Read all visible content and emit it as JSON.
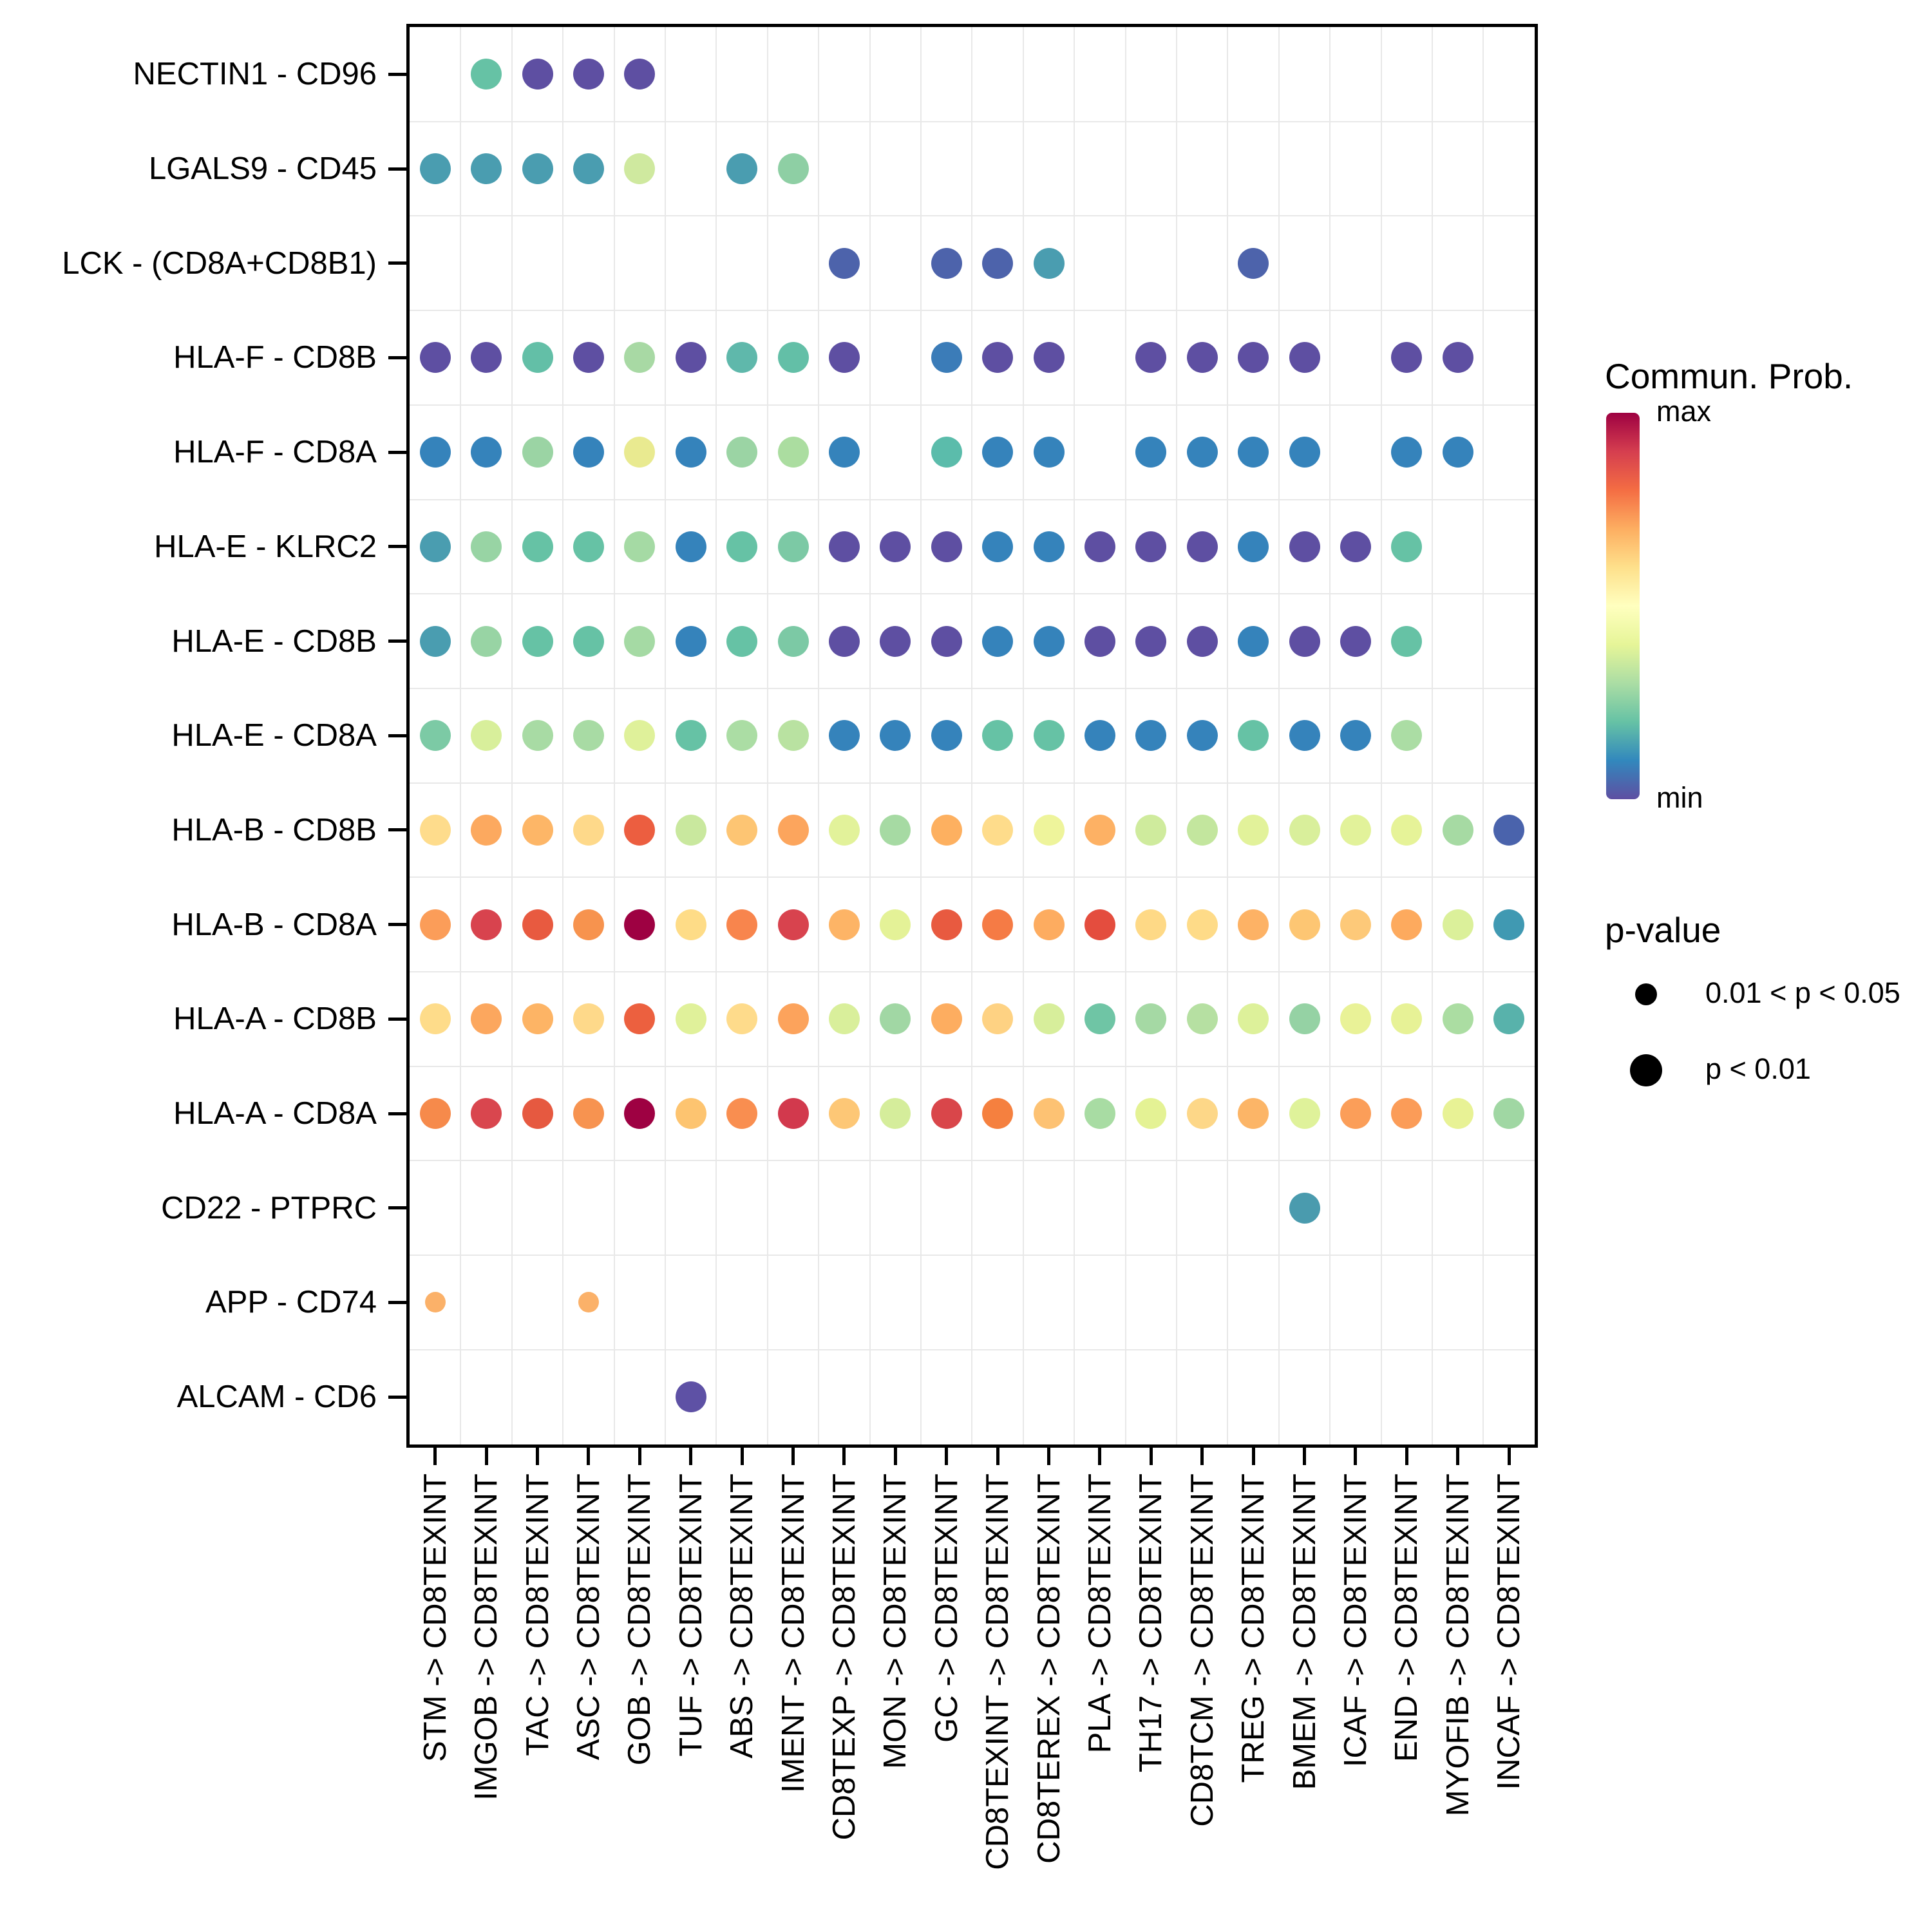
{
  "figure": {
    "background": "#ffffff",
    "panel_border_color": "#000000",
    "grid_color": "#e8e8e8"
  },
  "y_axis": {
    "labels": [
      "NECTIN1 - CD96",
      "LGALS9 - CD45",
      "LCK - (CD8A+CD8B1)",
      "HLA-F - CD8B",
      "HLA-F - CD8A",
      "HLA-E - KLRC2",
      "HLA-E - CD8B",
      "HLA-E - CD8A",
      "HLA-B - CD8B",
      "HLA-B - CD8A",
      "HLA-A - CD8B",
      "HLA-A - CD8A",
      "CD22 - PTPRC",
      "APP - CD74",
      "ALCAM - CD6"
    ]
  },
  "x_axis": {
    "labels": [
      "STM -> CD8TEXINT",
      "IMGOB -> CD8TEXINT",
      "TAC -> CD8TEXINT",
      "ASC -> CD8TEXINT",
      "GOB -> CD8TEXINT",
      "TUF -> CD8TEXINT",
      "ABS -> CD8TEXINT",
      "IMENT -> CD8TEXINT",
      "CD8TEXP -> CD8TEXINT",
      "MON -> CD8TEXINT",
      "GC -> CD8TEXINT",
      "CD8TEXINT -> CD8TEXINT",
      "CD8TEREX -> CD8TEXINT",
      "PLA -> CD8TEXINT",
      "TH17 -> CD8TEXINT",
      "CD8TCM -> CD8TEXINT",
      "TREG -> CD8TEXINT",
      "BMEM -> CD8TEXINT",
      "ICAF -> CD8TEXINT",
      "END -> CD8TEXINT",
      "MYOFIB -> CD8TEXINT",
      "INCAF -> CD8TEXINT"
    ]
  },
  "legend": {
    "color": {
      "title": "Commun. Prob.",
      "max_label": "max",
      "min_label": "min",
      "gradient_top_to_bottom": [
        "#9e0142",
        "#d53e4f",
        "#f46d43",
        "#fdae61",
        "#fee08b",
        "#ffffbf",
        "#e6f598",
        "#abdda4",
        "#66c2a5",
        "#3288bd",
        "#5e4fa2"
      ]
    },
    "pvalue": {
      "title": "p-value",
      "items": [
        {
          "label": "0.01 < p < 0.05",
          "size": "small"
        },
        {
          "label": "p < 0.01",
          "size": "large"
        }
      ]
    }
  },
  "chart_data": {
    "type": "scatter",
    "subtype": "ligand-receptor dot matrix (CellChat bubble plot)",
    "title": "",
    "xlabel": "",
    "ylabel": "",
    "grid": true,
    "legend_position": "right",
    "color_encoding": "communication probability: min = #5e4fa2 (purple) to max = #9e0142 (dark red), Spectral palette",
    "size_encoding": {
      "1": "p < 0.01 (large dot)",
      "0": "0.01 < p < 0.05 (small dot)"
    },
    "x_categories": [
      "STM",
      "IMGOB",
      "TAC",
      "ASC",
      "GOB",
      "TUF",
      "ABS",
      "IMENT",
      "CD8TEXP",
      "MON",
      "GC",
      "CD8TEXINT",
      "CD8TEREX",
      "PLA",
      "TH17",
      "CD8TCM",
      "TREG",
      "BMEM",
      "ICAF",
      "END",
      "MYOFIB",
      "INCAF"
    ],
    "y_categories": [
      "NECTIN1 - CD96",
      "LGALS9 - CD45",
      "LCK - (CD8A+CD8B1)",
      "HLA-F - CD8B",
      "HLA-F - CD8A",
      "HLA-E - KLRC2",
      "HLA-E - CD8B",
      "HLA-E - CD8A",
      "HLA-B - CD8B",
      "HLA-B - CD8A",
      "HLA-A - CD8B",
      "HLA-A - CD8A",
      "CD22 - PTPRC",
      "APP - CD74",
      "ALCAM - CD6"
    ],
    "dot_format": "[row_index, col_index, color_hex, size_flag(1=p<0.01,0=0.01<p<0.05)]",
    "dots": [
      [
        0,
        1,
        "#66c2a5",
        1
      ],
      [
        0,
        2,
        "#5e4fa2",
        1
      ],
      [
        0,
        3,
        "#5e4fa2",
        1
      ],
      [
        0,
        4,
        "#5e4fa2",
        1
      ],
      [
        1,
        0,
        "#4a9db0",
        1
      ],
      [
        1,
        1,
        "#4a9db0",
        1
      ],
      [
        1,
        2,
        "#4a9db0",
        1
      ],
      [
        1,
        3,
        "#4a9db0",
        1
      ],
      [
        1,
        4,
        "#cfe99f",
        1
      ],
      [
        1,
        6,
        "#4a9db0",
        1
      ],
      [
        1,
        7,
        "#8ecfa4",
        1
      ],
      [
        2,
        8,
        "#4d63ab",
        1
      ],
      [
        2,
        10,
        "#4d63ab",
        1
      ],
      [
        2,
        11,
        "#4d63ab",
        1
      ],
      [
        2,
        12,
        "#4a9db0",
        1
      ],
      [
        2,
        16,
        "#4d63ab",
        1
      ],
      [
        3,
        0,
        "#5e4fa2",
        1
      ],
      [
        3,
        1,
        "#5e4fa2",
        1
      ],
      [
        3,
        2,
        "#63bfa7",
        1
      ],
      [
        3,
        3,
        "#5e4fa2",
        1
      ],
      [
        3,
        4,
        "#a8d9a4",
        1
      ],
      [
        3,
        5,
        "#5e4fa2",
        1
      ],
      [
        3,
        6,
        "#5fb8ab",
        1
      ],
      [
        3,
        7,
        "#63bfa7",
        1
      ],
      [
        3,
        8,
        "#5e4fa2",
        1
      ],
      [
        3,
        10,
        "#3b7cb8",
        1
      ],
      [
        3,
        11,
        "#5e4fa2",
        1
      ],
      [
        3,
        12,
        "#5e4fa2",
        1
      ],
      [
        3,
        14,
        "#5e4fa2",
        1
      ],
      [
        3,
        15,
        "#5e4fa2",
        1
      ],
      [
        3,
        16,
        "#5e4fa2",
        1
      ],
      [
        3,
        17,
        "#5e4fa2",
        1
      ],
      [
        3,
        19,
        "#5e4fa2",
        1
      ],
      [
        3,
        20,
        "#5e4fa2",
        1
      ],
      [
        4,
        0,
        "#3583bb",
        1
      ],
      [
        4,
        1,
        "#3583bb",
        1
      ],
      [
        4,
        2,
        "#9bd4a4",
        1
      ],
      [
        4,
        3,
        "#3583bb",
        1
      ],
      [
        4,
        4,
        "#e9ea90",
        1
      ],
      [
        4,
        5,
        "#3583bb",
        1
      ],
      [
        4,
        6,
        "#9bd4a4",
        1
      ],
      [
        4,
        7,
        "#abdda0",
        1
      ],
      [
        4,
        8,
        "#3583bb",
        1
      ],
      [
        4,
        10,
        "#5bbcab",
        1
      ],
      [
        4,
        11,
        "#3583bb",
        1
      ],
      [
        4,
        12,
        "#3583bb",
        1
      ],
      [
        4,
        14,
        "#3583bb",
        1
      ],
      [
        4,
        15,
        "#3583bb",
        1
      ],
      [
        4,
        16,
        "#3583bb",
        1
      ],
      [
        4,
        17,
        "#3583bb",
        1
      ],
      [
        4,
        19,
        "#3583bb",
        1
      ],
      [
        4,
        20,
        "#3583bb",
        1
      ],
      [
        5,
        0,
        "#4a9db0",
        1
      ],
      [
        5,
        1,
        "#98d4a4",
        1
      ],
      [
        5,
        2,
        "#66c2a5",
        1
      ],
      [
        5,
        3,
        "#66c2a5",
        1
      ],
      [
        5,
        4,
        "#a5daa4",
        1
      ],
      [
        5,
        5,
        "#3583bb",
        1
      ],
      [
        5,
        6,
        "#66c2a5",
        1
      ],
      [
        5,
        7,
        "#7cc9a5",
        1
      ],
      [
        5,
        8,
        "#5e4fa2",
        1
      ],
      [
        5,
        9,
        "#5e4fa2",
        1
      ],
      [
        5,
        10,
        "#5e4fa2",
        1
      ],
      [
        5,
        11,
        "#3583bb",
        1
      ],
      [
        5,
        12,
        "#3583bb",
        1
      ],
      [
        5,
        13,
        "#5e4fa2",
        1
      ],
      [
        5,
        14,
        "#5e4fa2",
        1
      ],
      [
        5,
        15,
        "#5e4fa2",
        1
      ],
      [
        5,
        16,
        "#3583bb",
        1
      ],
      [
        5,
        17,
        "#5e4fa2",
        1
      ],
      [
        5,
        18,
        "#5e4fa2",
        1
      ],
      [
        5,
        19,
        "#66c2a5",
        1
      ],
      [
        6,
        0,
        "#4a9db0",
        1
      ],
      [
        6,
        1,
        "#98d4a4",
        1
      ],
      [
        6,
        2,
        "#66c2a5",
        1
      ],
      [
        6,
        3,
        "#66c2a5",
        1
      ],
      [
        6,
        4,
        "#a5daa4",
        1
      ],
      [
        6,
        5,
        "#3583bb",
        1
      ],
      [
        6,
        6,
        "#66c2a5",
        1
      ],
      [
        6,
        7,
        "#7cc9a5",
        1
      ],
      [
        6,
        8,
        "#5e4fa2",
        1
      ],
      [
        6,
        9,
        "#5e4fa2",
        1
      ],
      [
        6,
        10,
        "#5e4fa2",
        1
      ],
      [
        6,
        11,
        "#3583bb",
        1
      ],
      [
        6,
        12,
        "#3583bb",
        1
      ],
      [
        6,
        13,
        "#5e4fa2",
        1
      ],
      [
        6,
        14,
        "#5e4fa2",
        1
      ],
      [
        6,
        15,
        "#5e4fa2",
        1
      ],
      [
        6,
        16,
        "#3583bb",
        1
      ],
      [
        6,
        17,
        "#5e4fa2",
        1
      ],
      [
        6,
        18,
        "#5e4fa2",
        1
      ],
      [
        6,
        19,
        "#66c2a5",
        1
      ],
      [
        7,
        0,
        "#7ccaa5",
        1
      ],
      [
        7,
        1,
        "#d8ef9b",
        1
      ],
      [
        7,
        2,
        "#a8dba4",
        1
      ],
      [
        7,
        3,
        "#a8dba4",
        1
      ],
      [
        7,
        4,
        "#dff19a",
        1
      ],
      [
        7,
        5,
        "#66c2a5",
        1
      ],
      [
        7,
        6,
        "#abdda4",
        1
      ],
      [
        7,
        7,
        "#b9e2a1",
        1
      ],
      [
        7,
        8,
        "#3583bb",
        1
      ],
      [
        7,
        9,
        "#3583bb",
        1
      ],
      [
        7,
        10,
        "#3583bb",
        1
      ],
      [
        7,
        11,
        "#66c2a5",
        1
      ],
      [
        7,
        12,
        "#66c2a5",
        1
      ],
      [
        7,
        13,
        "#3583bb",
        1
      ],
      [
        7,
        14,
        "#3583bb",
        1
      ],
      [
        7,
        15,
        "#3583bb",
        1
      ],
      [
        7,
        16,
        "#66c2a5",
        1
      ],
      [
        7,
        17,
        "#3583bb",
        1
      ],
      [
        7,
        18,
        "#3583bb",
        1
      ],
      [
        7,
        19,
        "#abdda4",
        1
      ],
      [
        8,
        0,
        "#fedc8c",
        1
      ],
      [
        8,
        1,
        "#fca95f",
        1
      ],
      [
        8,
        2,
        "#fdb667",
        1
      ],
      [
        8,
        3,
        "#fed98a",
        1
      ],
      [
        8,
        4,
        "#ec5e40",
        1
      ],
      [
        8,
        5,
        "#c9e89e",
        1
      ],
      [
        8,
        6,
        "#fdc573",
        1
      ],
      [
        8,
        7,
        "#fca55d",
        1
      ],
      [
        8,
        8,
        "#e2f29a",
        1
      ],
      [
        8,
        9,
        "#a6daa3",
        1
      ],
      [
        8,
        10,
        "#fdb060",
        1
      ],
      [
        8,
        11,
        "#fedc8b",
        1
      ],
      [
        8,
        12,
        "#eef49b",
        1
      ],
      [
        8,
        13,
        "#fdb164",
        1
      ],
      [
        8,
        14,
        "#cfeb9d",
        1
      ],
      [
        8,
        15,
        "#c3e69e",
        1
      ],
      [
        8,
        16,
        "#e2f29a",
        1
      ],
      [
        8,
        17,
        "#d9ef9b",
        1
      ],
      [
        8,
        18,
        "#e2f29a",
        1
      ],
      [
        8,
        19,
        "#e6f398",
        1
      ],
      [
        8,
        20,
        "#a6daa3",
        1
      ],
      [
        8,
        21,
        "#4a63ac",
        1
      ],
      [
        9,
        0,
        "#fb9d59",
        1
      ],
      [
        9,
        1,
        "#d8434e",
        1
      ],
      [
        9,
        2,
        "#e85a40",
        1
      ],
      [
        9,
        3,
        "#f7934e",
        1
      ],
      [
        9,
        4,
        "#9e0142",
        1
      ],
      [
        9,
        5,
        "#fedc87",
        1
      ],
      [
        9,
        6,
        "#f8854d",
        1
      ],
      [
        9,
        7,
        "#d8434e",
        1
      ],
      [
        9,
        8,
        "#fdb466",
        1
      ],
      [
        9,
        9,
        "#e4f297",
        1
      ],
      [
        9,
        10,
        "#e85a40",
        1
      ],
      [
        9,
        11,
        "#f57b45",
        1
      ],
      [
        9,
        12,
        "#fdac60",
        1
      ],
      [
        9,
        13,
        "#e44d3e",
        1
      ],
      [
        9,
        14,
        "#fed986",
        1
      ],
      [
        9,
        15,
        "#fedb88",
        1
      ],
      [
        9,
        16,
        "#fdb265",
        1
      ],
      [
        9,
        17,
        "#fdc673",
        1
      ],
      [
        9,
        18,
        "#fdc979",
        1
      ],
      [
        9,
        19,
        "#fdaa5e",
        1
      ],
      [
        9,
        20,
        "#dbf09a",
        1
      ],
      [
        9,
        21,
        "#4099b2",
        1
      ],
      [
        10,
        0,
        "#fedc8a",
        1
      ],
      [
        10,
        1,
        "#fca75e",
        1
      ],
      [
        10,
        2,
        "#fdb465",
        1
      ],
      [
        10,
        3,
        "#fed98a",
        1
      ],
      [
        10,
        4,
        "#ec603f",
        1
      ],
      [
        10,
        5,
        "#e0f19a",
        1
      ],
      [
        10,
        6,
        "#fedb8b",
        1
      ],
      [
        10,
        7,
        "#fca35c",
        1
      ],
      [
        10,
        8,
        "#d9ef9b",
        1
      ],
      [
        10,
        9,
        "#a1d7a4",
        1
      ],
      [
        10,
        10,
        "#fdad60",
        1
      ],
      [
        10,
        11,
        "#fed283",
        1
      ],
      [
        10,
        12,
        "#d7ee9b",
        1
      ],
      [
        10,
        13,
        "#6fc5a5",
        1
      ],
      [
        10,
        14,
        "#a5d9a4",
        1
      ],
      [
        10,
        15,
        "#b6e0a2",
        1
      ],
      [
        10,
        16,
        "#ddf19a",
        1
      ],
      [
        10,
        17,
        "#95d2a4",
        1
      ],
      [
        10,
        18,
        "#e9f297",
        1
      ],
      [
        10,
        19,
        "#e7f296",
        1
      ],
      [
        10,
        20,
        "#abdda2",
        1
      ],
      [
        10,
        21,
        "#58b2ab",
        1
      ],
      [
        11,
        0,
        "#f68a4b",
        1
      ],
      [
        11,
        1,
        "#d9464e",
        1
      ],
      [
        11,
        2,
        "#e65940",
        1
      ],
      [
        11,
        3,
        "#f79350",
        1
      ],
      [
        11,
        4,
        "#9e0142",
        1
      ],
      [
        11,
        5,
        "#fdc470",
        1
      ],
      [
        11,
        6,
        "#f98e50",
        1
      ],
      [
        11,
        7,
        "#d2394d",
        1
      ],
      [
        11,
        8,
        "#fdc776",
        1
      ],
      [
        11,
        9,
        "#d5ed9b",
        1
      ],
      [
        11,
        10,
        "#d9464a",
        1
      ],
      [
        11,
        11,
        "#f5803f",
        1
      ],
      [
        11,
        12,
        "#fdc273",
        1
      ],
      [
        11,
        13,
        "#a8dca3",
        1
      ],
      [
        11,
        14,
        "#e4f294",
        1
      ],
      [
        11,
        15,
        "#fdd788",
        1
      ],
      [
        11,
        16,
        "#fcb567",
        1
      ],
      [
        11,
        17,
        "#dff29a",
        1
      ],
      [
        11,
        18,
        "#fb9e59",
        1
      ],
      [
        11,
        19,
        "#fb9c58",
        1
      ],
      [
        11,
        20,
        "#e8f295",
        1
      ],
      [
        11,
        21,
        "#a0d7a3",
        1
      ],
      [
        12,
        17,
        "#4a9bae",
        1
      ],
      [
        13,
        0,
        "#fbb169",
        0
      ],
      [
        13,
        3,
        "#fbb169",
        0
      ],
      [
        14,
        5,
        "#5e51a5",
        1
      ]
    ]
  }
}
